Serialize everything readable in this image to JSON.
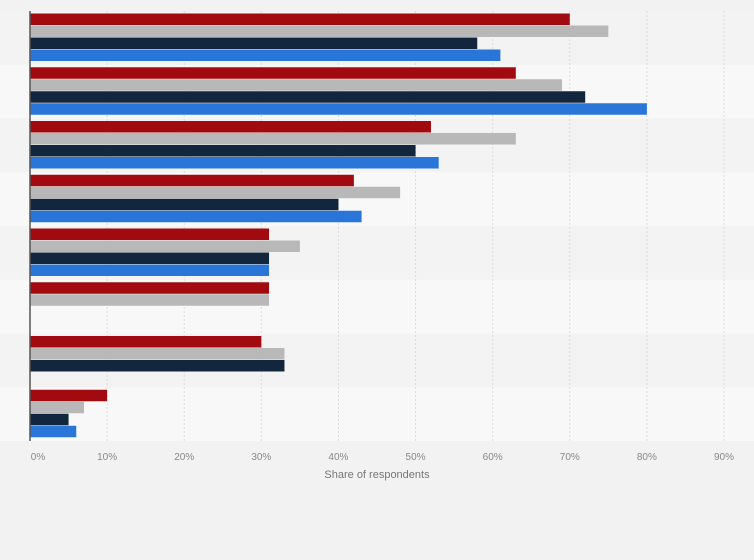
{
  "chart_data": {
    "type": "bar",
    "orientation": "horizontal",
    "title": "",
    "xlabel": "Share of respondents",
    "ylabel": "",
    "xlim": [
      0,
      90
    ],
    "xticks": [
      "0%",
      "10%",
      "20%",
      "30%",
      "40%",
      "50%",
      "60%",
      "70%",
      "80%",
      "90%"
    ],
    "grid": true,
    "legend": "none",
    "categories": [
      "",
      "",
      "",
      "",
      "",
      "",
      "",
      ""
    ],
    "series": [
      {
        "name": "",
        "color": "#a10a0e",
        "values": [
          70,
          63,
          52,
          42,
          31,
          31,
          30,
          10
        ]
      },
      {
        "name": "",
        "color": "#b8b8b8",
        "values": [
          75,
          69,
          63,
          48,
          35,
          31,
          33,
          7
        ]
      },
      {
        "name": "",
        "color": "#12263d",
        "values": [
          58,
          72,
          50,
          40,
          31,
          null,
          33,
          5
        ]
      },
      {
        "name": "",
        "color": "#2a75d8",
        "values": [
          61,
          80,
          53,
          43,
          31,
          null,
          null,
          6
        ]
      }
    ]
  }
}
